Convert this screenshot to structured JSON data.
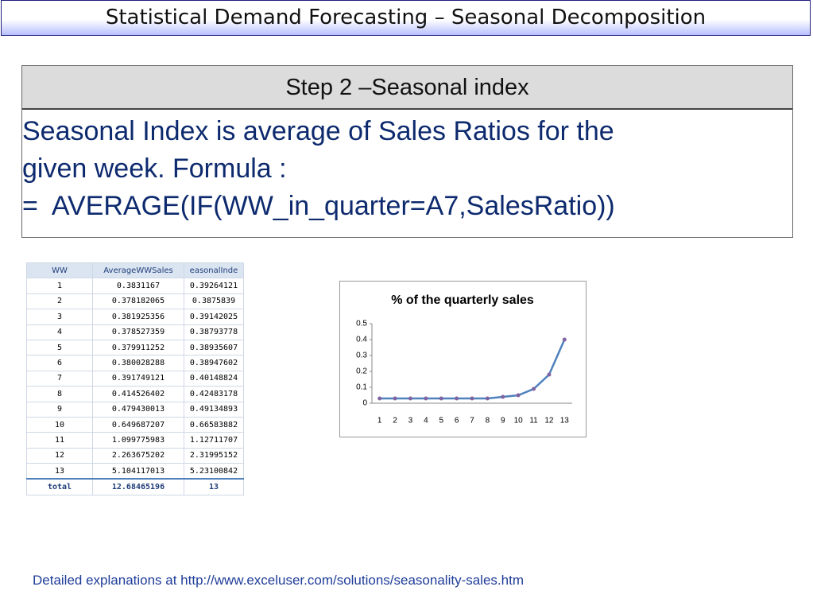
{
  "header": {
    "title": "Statistical Demand Forecasting – Seasonal Decomposition"
  },
  "box": {
    "heading": "Step 2 –Seasonal index",
    "lines": [
      "Seasonal Index is average of Sales Ratios for the",
      "given week. Formula :",
      "=  AVERAGE(IF(WW_in_quarter=A7,SalesRatio))"
    ]
  },
  "table": {
    "columns": [
      "WW",
      "AverageWWSales",
      "easonalInde"
    ],
    "rows": [
      [
        "1",
        "0.3831167",
        "0.39264121"
      ],
      [
        "2",
        "0.378182065",
        "0.3875839"
      ],
      [
        "3",
        "0.381925356",
        "0.39142025"
      ],
      [
        "4",
        "0.378527359",
        "0.38793778"
      ],
      [
        "5",
        "0.379911252",
        "0.38935607"
      ],
      [
        "6",
        "0.380028288",
        "0.38947602"
      ],
      [
        "7",
        "0.391749121",
        "0.40148824"
      ],
      [
        "8",
        "0.414526402",
        "0.42483178"
      ],
      [
        "9",
        "0.479430013",
        "0.49134893"
      ],
      [
        "10",
        "0.649687207",
        "0.66583882"
      ],
      [
        "11",
        "1.099775983",
        "1.12711707"
      ],
      [
        "12",
        "2.263675202",
        "2.31995152"
      ],
      [
        "13",
        "5.104117013",
        "5.23100842"
      ],
      [
        "total",
        "12.68465196",
        "13"
      ]
    ]
  },
  "chart_data": {
    "type": "line",
    "title": "% of the quarterly sales",
    "categories": [
      "1",
      "2",
      "3",
      "4",
      "5",
      "6",
      "7",
      "8",
      "9",
      "10",
      "11",
      "12",
      "13"
    ],
    "values": [
      0.03,
      0.03,
      0.03,
      0.03,
      0.03,
      0.03,
      0.03,
      0.03,
      0.04,
      0.05,
      0.09,
      0.18,
      0.4
    ],
    "color": "#4f81bd",
    "marker_color": "#8064a2",
    "ylim": [
      0,
      0.5
    ],
    "yticks": [
      0,
      0.1,
      0.2,
      0.3,
      0.4,
      0.5
    ],
    "grid": false
  },
  "footer": {
    "text": "Detailed explanations at http://www.exceluser.com/solutions/seasonality-sales.htm"
  }
}
